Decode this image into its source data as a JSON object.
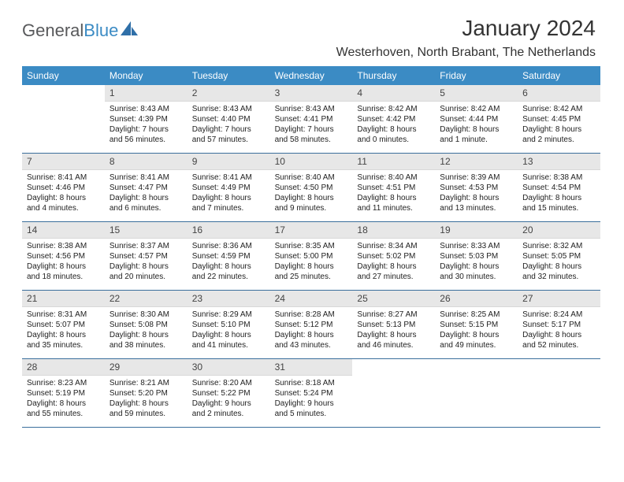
{
  "brand": {
    "part1": "General",
    "part2": "Blue"
  },
  "header": {
    "month_title": "January 2024",
    "location": "Westerhoven, North Brabant, The Netherlands"
  },
  "calendar": {
    "day_names": [
      "Sunday",
      "Monday",
      "Tuesday",
      "Wednesday",
      "Thursday",
      "Friday",
      "Saturday"
    ],
    "header_bg": "#3b8bc4",
    "header_fg": "#ffffff",
    "rule_color": "#3b6f9c",
    "daynum_bg": "#e7e7e7",
    "body_bg": "#ffffff",
    "text_color": "#222222",
    "font_size_daynum": 12,
    "font_size_body": 10,
    "weeks": [
      [
        null,
        {
          "n": "1",
          "sunrise": "8:43 AM",
          "sunset": "4:39 PM",
          "daylight": "7 hours and 56 minutes."
        },
        {
          "n": "2",
          "sunrise": "8:43 AM",
          "sunset": "4:40 PM",
          "daylight": "7 hours and 57 minutes."
        },
        {
          "n": "3",
          "sunrise": "8:43 AM",
          "sunset": "4:41 PM",
          "daylight": "7 hours and 58 minutes."
        },
        {
          "n": "4",
          "sunrise": "8:42 AM",
          "sunset": "4:42 PM",
          "daylight": "8 hours and 0 minutes."
        },
        {
          "n": "5",
          "sunrise": "8:42 AM",
          "sunset": "4:44 PM",
          "daylight": "8 hours and 1 minute."
        },
        {
          "n": "6",
          "sunrise": "8:42 AM",
          "sunset": "4:45 PM",
          "daylight": "8 hours and 2 minutes."
        }
      ],
      [
        {
          "n": "7",
          "sunrise": "8:41 AM",
          "sunset": "4:46 PM",
          "daylight": "8 hours and 4 minutes."
        },
        {
          "n": "8",
          "sunrise": "8:41 AM",
          "sunset": "4:47 PM",
          "daylight": "8 hours and 6 minutes."
        },
        {
          "n": "9",
          "sunrise": "8:41 AM",
          "sunset": "4:49 PM",
          "daylight": "8 hours and 7 minutes."
        },
        {
          "n": "10",
          "sunrise": "8:40 AM",
          "sunset": "4:50 PM",
          "daylight": "8 hours and 9 minutes."
        },
        {
          "n": "11",
          "sunrise": "8:40 AM",
          "sunset": "4:51 PM",
          "daylight": "8 hours and 11 minutes."
        },
        {
          "n": "12",
          "sunrise": "8:39 AM",
          "sunset": "4:53 PM",
          "daylight": "8 hours and 13 minutes."
        },
        {
          "n": "13",
          "sunrise": "8:38 AM",
          "sunset": "4:54 PM",
          "daylight": "8 hours and 15 minutes."
        }
      ],
      [
        {
          "n": "14",
          "sunrise": "8:38 AM",
          "sunset": "4:56 PM",
          "daylight": "8 hours and 18 minutes."
        },
        {
          "n": "15",
          "sunrise": "8:37 AM",
          "sunset": "4:57 PM",
          "daylight": "8 hours and 20 minutes."
        },
        {
          "n": "16",
          "sunrise": "8:36 AM",
          "sunset": "4:59 PM",
          "daylight": "8 hours and 22 minutes."
        },
        {
          "n": "17",
          "sunrise": "8:35 AM",
          "sunset": "5:00 PM",
          "daylight": "8 hours and 25 minutes."
        },
        {
          "n": "18",
          "sunrise": "8:34 AM",
          "sunset": "5:02 PM",
          "daylight": "8 hours and 27 minutes."
        },
        {
          "n": "19",
          "sunrise": "8:33 AM",
          "sunset": "5:03 PM",
          "daylight": "8 hours and 30 minutes."
        },
        {
          "n": "20",
          "sunrise": "8:32 AM",
          "sunset": "5:05 PM",
          "daylight": "8 hours and 32 minutes."
        }
      ],
      [
        {
          "n": "21",
          "sunrise": "8:31 AM",
          "sunset": "5:07 PM",
          "daylight": "8 hours and 35 minutes."
        },
        {
          "n": "22",
          "sunrise": "8:30 AM",
          "sunset": "5:08 PM",
          "daylight": "8 hours and 38 minutes."
        },
        {
          "n": "23",
          "sunrise": "8:29 AM",
          "sunset": "5:10 PM",
          "daylight": "8 hours and 41 minutes."
        },
        {
          "n": "24",
          "sunrise": "8:28 AM",
          "sunset": "5:12 PM",
          "daylight": "8 hours and 43 minutes."
        },
        {
          "n": "25",
          "sunrise": "8:27 AM",
          "sunset": "5:13 PM",
          "daylight": "8 hours and 46 minutes."
        },
        {
          "n": "26",
          "sunrise": "8:25 AM",
          "sunset": "5:15 PM",
          "daylight": "8 hours and 49 minutes."
        },
        {
          "n": "27",
          "sunrise": "8:24 AM",
          "sunset": "5:17 PM",
          "daylight": "8 hours and 52 minutes."
        }
      ],
      [
        {
          "n": "28",
          "sunrise": "8:23 AM",
          "sunset": "5:19 PM",
          "daylight": "8 hours and 55 minutes."
        },
        {
          "n": "29",
          "sunrise": "8:21 AM",
          "sunset": "5:20 PM",
          "daylight": "8 hours and 59 minutes."
        },
        {
          "n": "30",
          "sunrise": "8:20 AM",
          "sunset": "5:22 PM",
          "daylight": "9 hours and 2 minutes."
        },
        {
          "n": "31",
          "sunrise": "8:18 AM",
          "sunset": "5:24 PM",
          "daylight": "9 hours and 5 minutes."
        },
        null,
        null,
        null
      ]
    ],
    "labels": {
      "sunrise": "Sunrise:",
      "sunset": "Sunset:",
      "daylight": "Daylight:"
    }
  }
}
